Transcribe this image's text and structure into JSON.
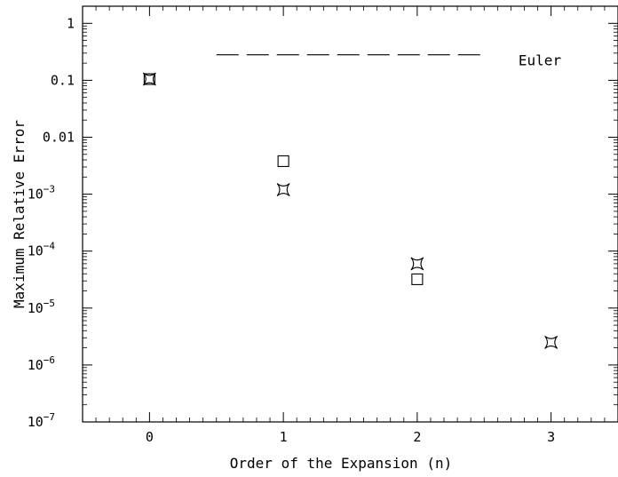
{
  "chart_data": {
    "type": "scatter",
    "xlabel": "Order of the Expansion (n)",
    "ylabel": "Maximum Relative Error",
    "y_scale": "log",
    "xlim": [
      -0.5,
      3.5
    ],
    "ylim": [
      1e-07,
      2
    ],
    "x_ticks": [
      {
        "value": 0,
        "label": "0"
      },
      {
        "value": 1,
        "label": "1"
      },
      {
        "value": 2,
        "label": "2"
      },
      {
        "value": 3,
        "label": "3"
      }
    ],
    "y_ticks": [
      {
        "value": 1,
        "base": "1",
        "exp": ""
      },
      {
        "value": 0.1,
        "base": "0.1",
        "exp": ""
      },
      {
        "value": 0.01,
        "base": "0.01",
        "exp": ""
      },
      {
        "value": 0.001,
        "base": "10",
        "exp": "−3"
      },
      {
        "value": 0.0001,
        "base": "10",
        "exp": "−4"
      },
      {
        "value": 1e-05,
        "base": "10",
        "exp": "−5"
      },
      {
        "value": 1e-06,
        "base": "10",
        "exp": "−6"
      },
      {
        "value": 1e-07,
        "base": "10",
        "exp": "−7"
      }
    ],
    "series": [
      {
        "marker": "square",
        "x": [
          0,
          1,
          2
        ],
        "y": [
          0.105,
          0.0038,
          3.2e-05
        ]
      },
      {
        "marker": "star",
        "x": [
          0,
          1,
          2,
          3
        ],
        "y": [
          0.105,
          0.0012,
          6e-05,
          2.5e-06
        ]
      }
    ],
    "reference_line": {
      "label": "Euler",
      "style": "dashed",
      "y": 0.28,
      "x_range": [
        0.5,
        2.5
      ]
    },
    "grid": false,
    "colors": {
      "marks": "#000000",
      "background": "#ffffff"
    }
  }
}
